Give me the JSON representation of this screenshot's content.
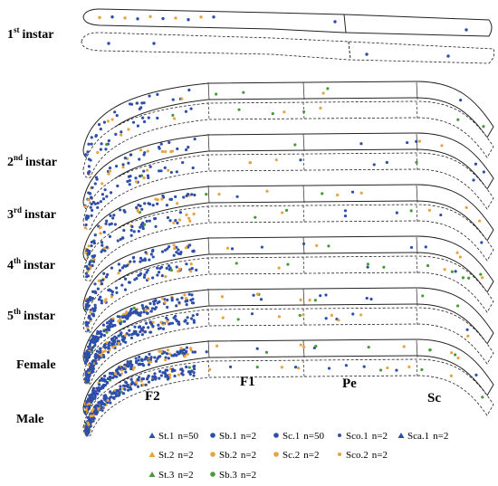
{
  "stages": [
    {
      "num": "1",
      "sup": "st",
      "text": "instar"
    },
    {
      "num": "2",
      "sup": "nd",
      "text": "instar"
    },
    {
      "num": "3",
      "sup": "rd",
      "text": "instar"
    },
    {
      "num": "4",
      "sup": "th",
      "text": "instar"
    },
    {
      "num": "5",
      "sup": "th",
      "text": "instar"
    },
    {
      "text": "Female"
    },
    {
      "text": "Male"
    }
  ],
  "segments": [
    "F2",
    "F1",
    "Pe",
    "Sc"
  ],
  "legend": [
    {
      "name": "St.1",
      "n": "n=50",
      "color": "#2e4fa8",
      "marker": "triangle"
    },
    {
      "name": "Sb.1",
      "n": "n=2",
      "color": "#2e4fa8",
      "marker": "circle"
    },
    {
      "name": "Sc.1",
      "n": "n=50",
      "color": "#2e4fa8",
      "marker": "circle"
    },
    {
      "name": "Sco.1",
      "n": "n=2",
      "color": "#2e4fa8",
      "marker": "dot"
    },
    {
      "name": "Sca.1",
      "n": "n=2",
      "color": "#2e4fa8",
      "marker": "triangle"
    },
    {
      "name": "St.2",
      "n": "n=2",
      "color": "#e8a33d",
      "marker": "triangle"
    },
    {
      "name": "Sb.2",
      "n": "n=2",
      "color": "#e8a33d",
      "marker": "circle"
    },
    {
      "name": "Sc.2",
      "n": "n=2",
      "color": "#e8a33d",
      "marker": "circle"
    },
    {
      "name": "Sco.2",
      "n": "n=2",
      "color": "#e8a33d",
      "marker": "dot"
    },
    {
      "name": "St.3",
      "n": "n=2",
      "color": "#4a9a3a",
      "marker": "triangle"
    },
    {
      "name": "Sb.3",
      "n": "n=2",
      "color": "#4a9a3a",
      "marker": "circle"
    }
  ]
}
